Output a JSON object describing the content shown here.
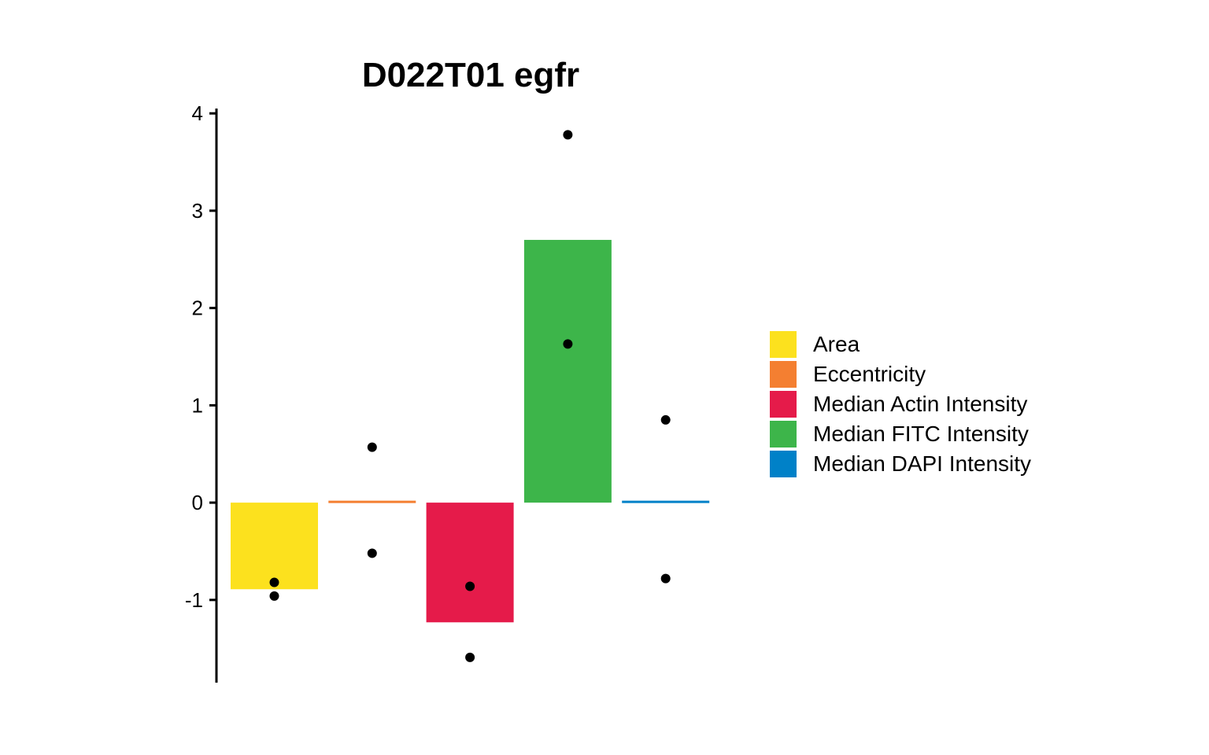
{
  "chart_data": {
    "type": "bar",
    "title": "D022T01 egfr",
    "xlabel": "",
    "ylabel": "",
    "ylim": [
      -1.85,
      4.05
    ],
    "yticks": [
      4,
      3,
      2,
      1,
      0,
      -1
    ],
    "ytick_labels": [
      "4",
      "3",
      "2",
      "1",
      "0",
      "-1"
    ],
    "grid": false,
    "legend_position": "right",
    "categories": [
      "Area",
      "Eccentricity",
      "Median Actin Intensity",
      "Median FITC Intensity",
      "Median DAPI Intensity"
    ],
    "colors": [
      "#FCE11E",
      "#F47F31",
      "#E51B4A",
      "#3DB54A",
      "#0081C8"
    ],
    "values": [
      -0.89,
      0.02,
      -1.23,
      2.7,
      0.02
    ],
    "points": [
      [
        -0.82,
        -0.96
      ],
      [
        0.57,
        -0.52
      ],
      [
        -0.86,
        -1.59
      ],
      [
        3.78,
        1.63
      ],
      [
        0.85,
        -0.78
      ]
    ]
  }
}
